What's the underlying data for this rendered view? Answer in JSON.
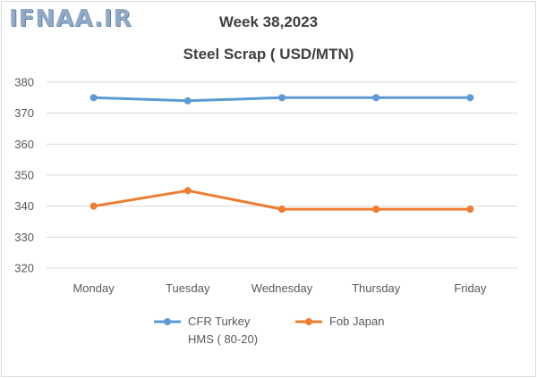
{
  "watermark": "IFNAA.IR",
  "colors": {
    "series_1": "#5b9bd5",
    "series_2": "#ed7d31",
    "grid": "#d9d9d9",
    "text": "#595959",
    "title": "#404040"
  },
  "chart_data": {
    "type": "line",
    "title": "Week 38,2023",
    "subtitle": "Steel Scrap ( USD/MTN)",
    "xlabel": "",
    "ylabel": "",
    "categories": [
      "Monday",
      "Tuesday",
      "Wednesday",
      "Thursday",
      "Friday"
    ],
    "ylim": [
      320,
      380
    ],
    "yticks": [
      320,
      330,
      340,
      350,
      360,
      370,
      380
    ],
    "grid": true,
    "legend": "bottom",
    "series": [
      {
        "name_line1": "CFR Turkey",
        "name_line2": "HMS ( 80-20)",
        "name": "CFR Turkey HMS ( 80-20)",
        "color": "#5b9bd5",
        "values": [
          375,
          374,
          375,
          375,
          375
        ]
      },
      {
        "name": "Fob Japan",
        "color": "#ed7d31",
        "values": [
          340,
          345,
          339,
          339,
          339
        ]
      }
    ]
  }
}
